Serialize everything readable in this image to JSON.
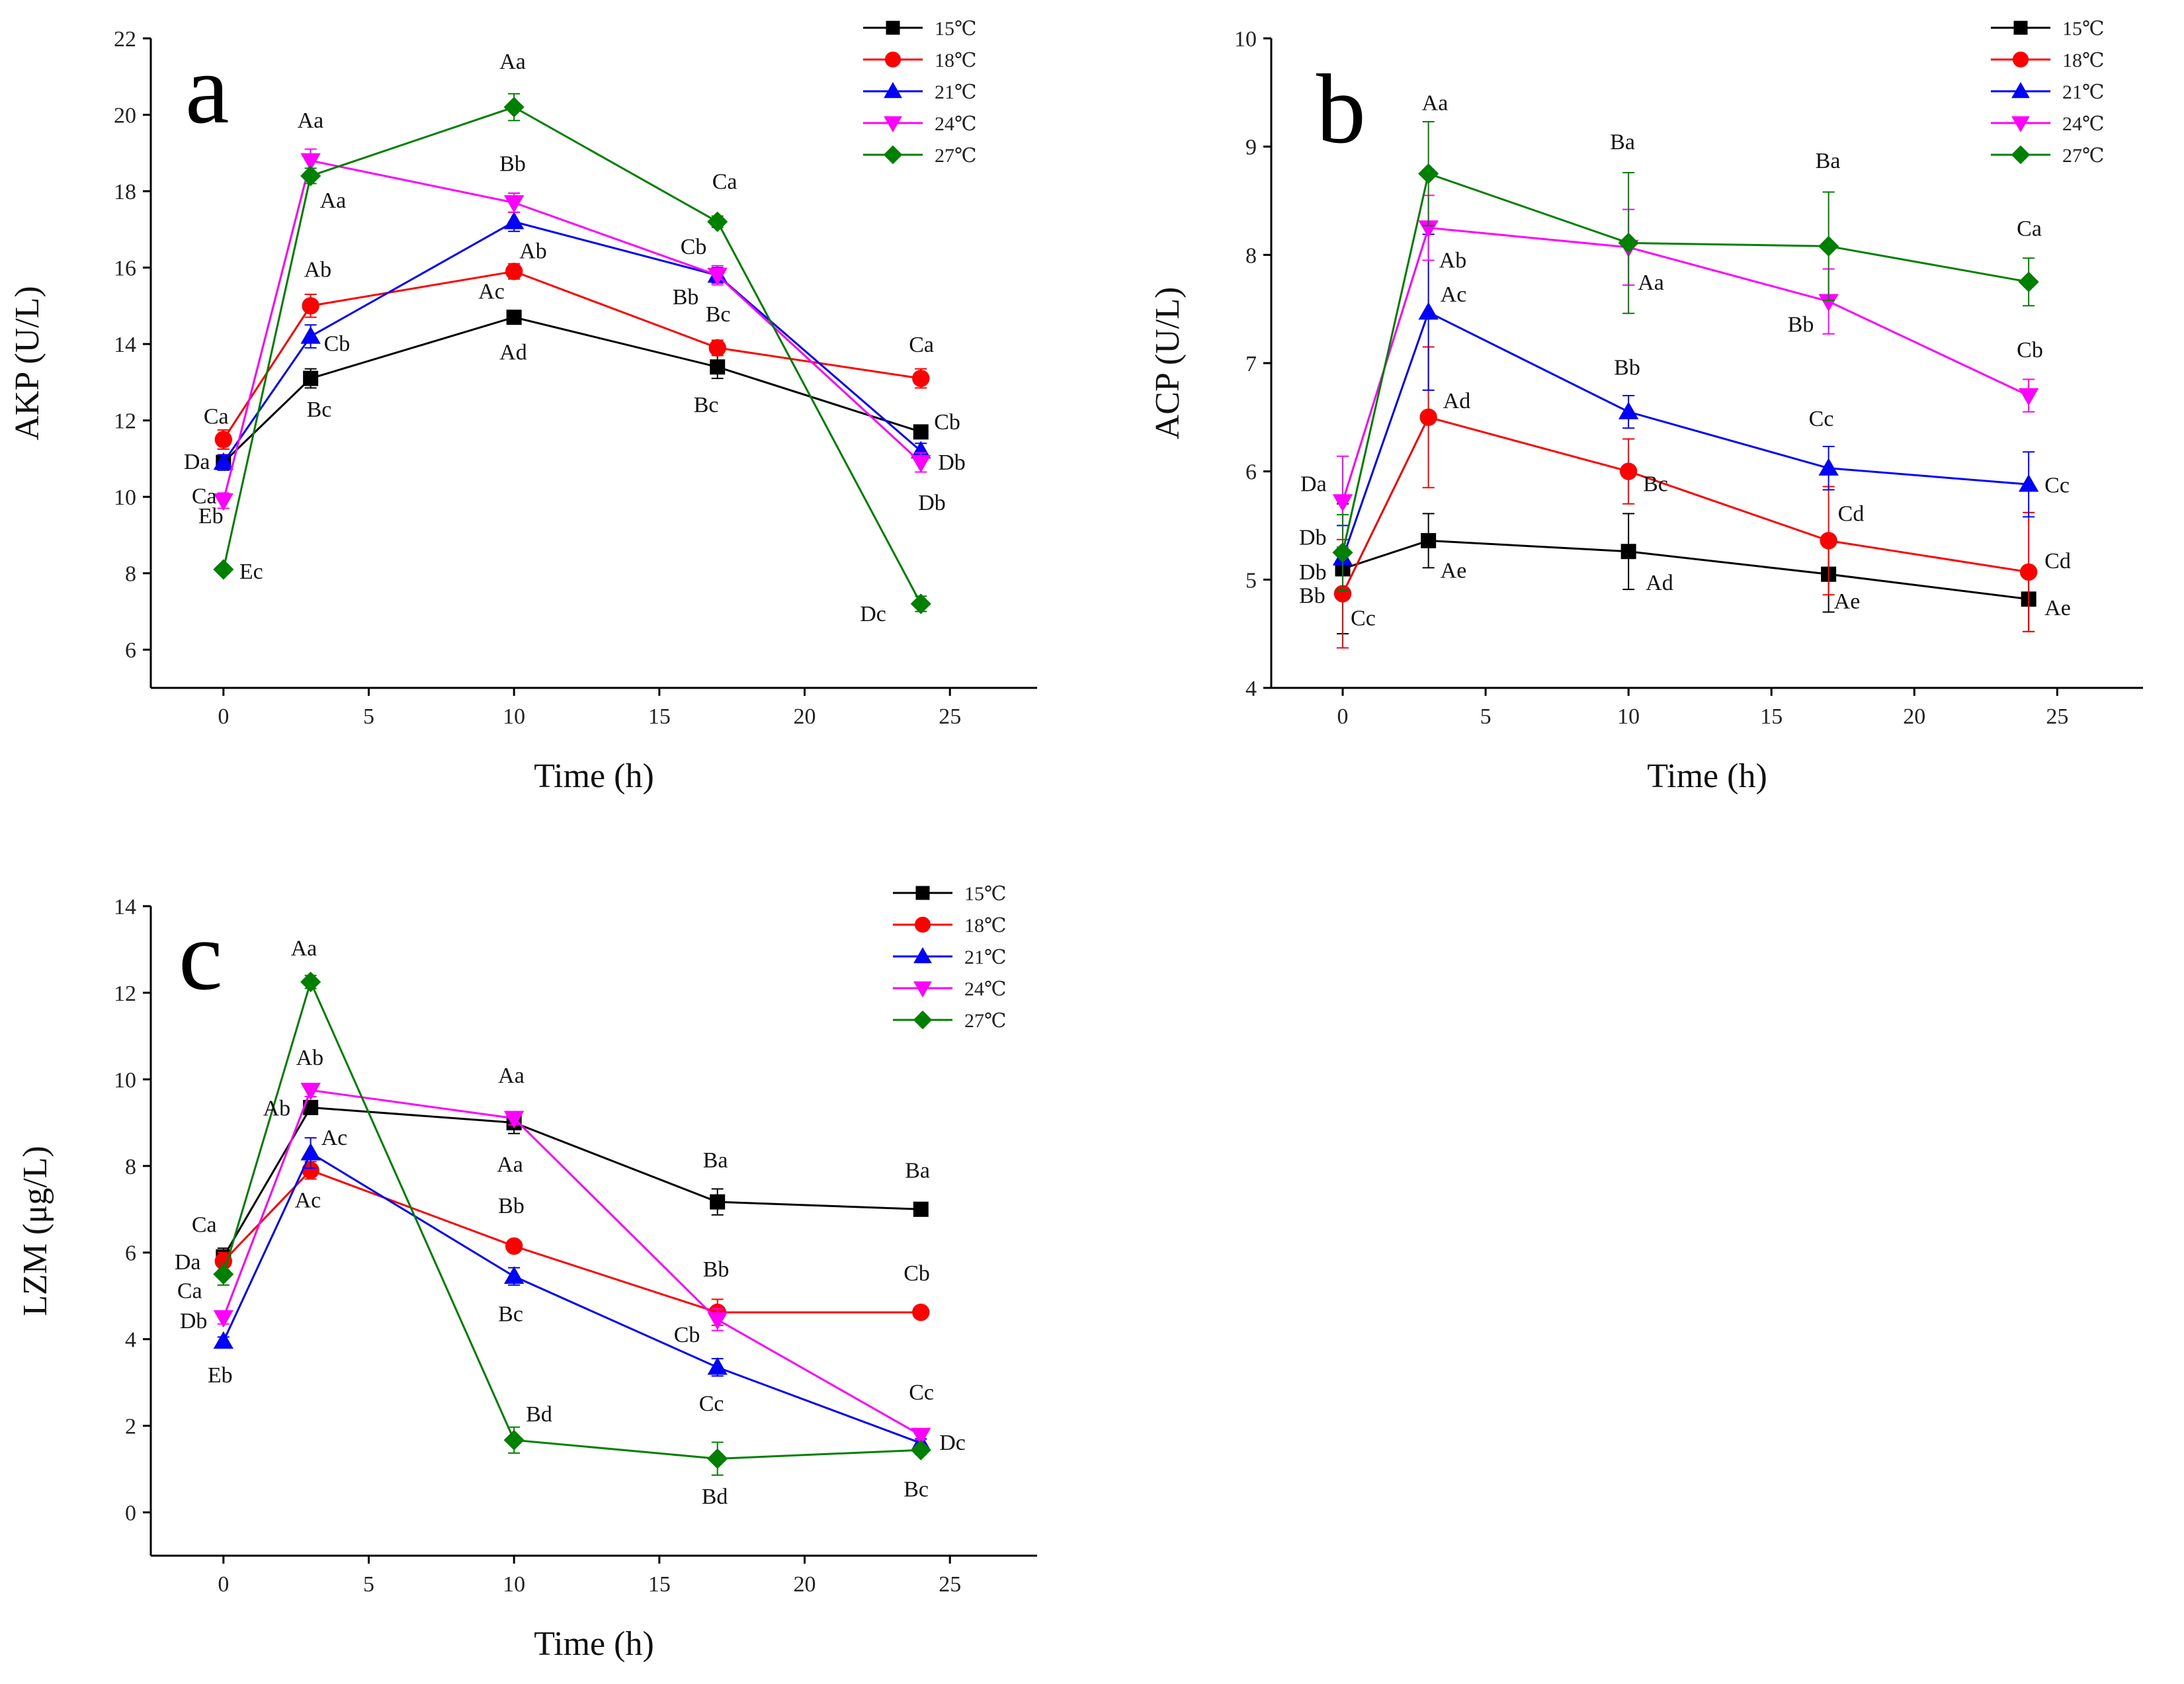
{
  "series_styles": [
    {
      "name": "15℃",
      "color": "#000000",
      "marker": "square"
    },
    {
      "name": "18℃",
      "color": "#ff0000",
      "marker": "circle"
    },
    {
      "name": "21℃",
      "color": "#0000ff",
      "marker": "triangle-up"
    },
    {
      "name": "24℃",
      "color": "#ff00ff",
      "marker": "triangle-down"
    },
    {
      "name": "27℃",
      "color": "#008000",
      "marker": "diamond"
    }
  ],
  "chart_data": [
    {
      "panel": "a",
      "type": "line",
      "xlabel": "Time (h)",
      "ylabel": "AKP (U/L)",
      "xlim": [
        -2.5,
        28
      ],
      "ylim": [
        5,
        22
      ],
      "xticks": [
        0,
        5,
        10,
        15,
        20,
        25
      ],
      "yticks": [
        6,
        8,
        10,
        12,
        14,
        16,
        18,
        20,
        22
      ],
      "x": [
        0,
        3,
        10,
        17,
        24
      ],
      "legend_position": "top-right",
      "series": [
        {
          "name": "15℃",
          "values": [
            10.9,
            13.1,
            14.7,
            13.4,
            11.7
          ],
          "errors": [
            0.2,
            0.25,
            0.15,
            0.3,
            0.15
          ]
        },
        {
          "name": "18℃",
          "values": [
            11.5,
            15.0,
            15.9,
            13.9,
            13.1
          ],
          "errors": [
            0.25,
            0.3,
            0.2,
            0.2,
            0.25
          ]
        },
        {
          "name": "21℃",
          "values": [
            10.9,
            14.2,
            17.2,
            15.8,
            11.2
          ],
          "errors": [
            0.2,
            0.3,
            0.25,
            0.2,
            0.2
          ]
        },
        {
          "name": "24℃",
          "values": [
            9.9,
            18.8,
            17.7,
            15.8,
            10.9
          ],
          "errors": [
            0.2,
            0.3,
            0.25,
            0.25,
            0.25
          ]
        },
        {
          "name": "27℃",
          "values": [
            8.1,
            18.4,
            20.2,
            17.2,
            7.2
          ],
          "errors": [
            0.1,
            0.2,
            0.35,
            0.15,
            0.2
          ]
        }
      ],
      "annotations": [
        {
          "text": "Ca",
          "x": 0,
          "y": 11.5,
          "dx": -30,
          "dy": -24
        },
        {
          "text": "Da",
          "x": 0,
          "y": 10.9,
          "dx": -60,
          "dy": 10
        },
        {
          "text": "Ca",
          "x": 0,
          "y": 10.9,
          "dx": -48,
          "dy": 62
        },
        {
          "text": "Eb",
          "x": 0,
          "y": 9.9,
          "dx": -38,
          "dy": 34
        },
        {
          "text": "Ec",
          "x": 0,
          "y": 8.1,
          "dx": 24,
          "dy": 14
        },
        {
          "text": "Aa",
          "x": 3,
          "y": 18.8,
          "dx": -20,
          "dy": -50
        },
        {
          "text": "Aa",
          "x": 3,
          "y": 18.4,
          "dx": 14,
          "dy": 48
        },
        {
          "text": "Ab",
          "x": 3,
          "y": 15.0,
          "dx": -10,
          "dy": -44
        },
        {
          "text": "Cb",
          "x": 3,
          "y": 14.2,
          "dx": 20,
          "dy": 22
        },
        {
          "text": "Bc",
          "x": 3,
          "y": 13.1,
          "dx": -6,
          "dy": 58
        },
        {
          "text": "Aa",
          "x": 10,
          "y": 20.2,
          "dx": -22,
          "dy": -58
        },
        {
          "text": "Bb",
          "x": 10,
          "y": 17.7,
          "dx": -22,
          "dy": -48
        },
        {
          "text": "Ab",
          "x": 10,
          "y": 15.9,
          "dx": 8,
          "dy": -20
        },
        {
          "text": "Ac",
          "x": 10,
          "y": 14.7,
          "dx": -54,
          "dy": -28
        },
        {
          "text": "Ad",
          "x": 10,
          "y": 14.7,
          "dx": -22,
          "dy": 64
        },
        {
          "text": "Ca",
          "x": 17,
          "y": 17.2,
          "dx": -8,
          "dy": -50
        },
        {
          "text": "Cb",
          "x": 17,
          "y": 15.8,
          "dx": -56,
          "dy": -32
        },
        {
          "text": "Bb",
          "x": 17,
          "y": 15.8,
          "dx": -68,
          "dy": 44
        },
        {
          "text": "Bc",
          "x": 17,
          "y": 13.9,
          "dx": -18,
          "dy": -40
        },
        {
          "text": "Bc",
          "x": 17,
          "y": 13.4,
          "dx": -36,
          "dy": 68
        },
        {
          "text": "Ca",
          "x": 24,
          "y": 13.1,
          "dx": -18,
          "dy": -40
        },
        {
          "text": "Cb",
          "x": 24,
          "y": 11.7,
          "dx": 20,
          "dy": -4
        },
        {
          "text": "Db",
          "x": 24,
          "y": 11.2,
          "dx": 26,
          "dy": 28
        },
        {
          "text": "Db",
          "x": 24,
          "y": 10.9,
          "dx": -4,
          "dy": 72
        },
        {
          "text": "Dc",
          "x": 24,
          "y": 7.2,
          "dx": -92,
          "dy": 26
        }
      ]
    },
    {
      "panel": "b",
      "type": "line",
      "xlabel": "Time (h)",
      "ylabel": "ACP (U/L)",
      "xlim": [
        -2.5,
        28
      ],
      "ylim": [
        4,
        10
      ],
      "xticks": [
        0,
        5,
        10,
        15,
        20,
        25
      ],
      "yticks": [
        4,
        5,
        6,
        7,
        8,
        9,
        10
      ],
      "x": [
        0,
        3,
        10,
        17,
        24
      ],
      "legend_position": "top-right",
      "series": [
        {
          "name": "15℃",
          "values": [
            5.1,
            5.36,
            5.26,
            5.05,
            4.82
          ],
          "errors": [
            0.6,
            0.25,
            0.35,
            0.35,
            0.3
          ]
        },
        {
          "name": "18℃",
          "values": [
            4.87,
            6.5,
            6.0,
            5.36,
            5.07
          ],
          "errors": [
            0.5,
            0.65,
            0.3,
            0.5,
            0.55
          ]
        },
        {
          "name": "21℃",
          "values": [
            5.2,
            7.47,
            6.55,
            6.03,
            5.88
          ],
          "errors": [
            0.3,
            0.72,
            0.15,
            0.2,
            0.3
          ]
        },
        {
          "name": "24℃",
          "values": [
            5.72,
            8.25,
            8.07,
            7.57,
            6.7
          ],
          "errors": [
            0.42,
            0.3,
            0.35,
            0.3,
            0.15
          ]
        },
        {
          "name": "27℃",
          "values": [
            5.25,
            8.75,
            8.11,
            8.08,
            7.75
          ],
          "errors": [
            0.35,
            0.48,
            0.65,
            0.5,
            0.22
          ]
        }
      ],
      "annotations": [
        {
          "text": "Da",
          "x": 0,
          "y": 5.72,
          "dx": -64,
          "dy": -16
        },
        {
          "text": "Db",
          "x": 0,
          "y": 5.25,
          "dx": -66,
          "dy": -12
        },
        {
          "text": "Db",
          "x": 0,
          "y": 5.1,
          "dx": -66,
          "dy": 16
        },
        {
          "text": "Bb",
          "x": 0,
          "y": 4.87,
          "dx": -66,
          "dy": 14
        },
        {
          "text": "Cc",
          "x": 0,
          "y": 4.87,
          "dx": 12,
          "dy": 48
        },
        {
          "text": "Aa",
          "x": 3,
          "y": 8.75,
          "dx": -10,
          "dy": -96
        },
        {
          "text": "Ab",
          "x": 3,
          "y": 8.25,
          "dx": 16,
          "dy": 60
        },
        {
          "text": "Ac",
          "x": 3,
          "y": 7.47,
          "dx": 18,
          "dy": -16
        },
        {
          "text": "Ad",
          "x": 3,
          "y": 6.5,
          "dx": 22,
          "dy": -14
        },
        {
          "text": "Ae",
          "x": 3,
          "y": 5.36,
          "dx": 18,
          "dy": 56
        },
        {
          "text": "Ba",
          "x": 10,
          "y": 8.11,
          "dx": -28,
          "dy": -142
        },
        {
          "text": "Aa",
          "x": 10,
          "y": 8.07,
          "dx": 14,
          "dy": 64
        },
        {
          "text": "Bb",
          "x": 10,
          "y": 6.55,
          "dx": -22,
          "dy": -56
        },
        {
          "text": "Bc",
          "x": 10,
          "y": 6.0,
          "dx": 22,
          "dy": 30
        },
        {
          "text": "Ad",
          "x": 10,
          "y": 5.26,
          "dx": 26,
          "dy": 58
        },
        {
          "text": "Ba",
          "x": 17,
          "y": 8.08,
          "dx": -20,
          "dy": -118
        },
        {
          "text": "Bb",
          "x": 17,
          "y": 7.57,
          "dx": -62,
          "dy": 46
        },
        {
          "text": "Cc",
          "x": 17,
          "y": 6.03,
          "dx": -30,
          "dy": -64
        },
        {
          "text": "Cd",
          "x": 17,
          "y": 5.36,
          "dx": 14,
          "dy": -30
        },
        {
          "text": "Ae",
          "x": 17,
          "y": 5.05,
          "dx": 8,
          "dy": 52
        },
        {
          "text": "Ca",
          "x": 24,
          "y": 7.75,
          "dx": -18,
          "dy": -70
        },
        {
          "text": "Cb",
          "x": 24,
          "y": 6.7,
          "dx": -18,
          "dy": -58
        },
        {
          "text": "Cc",
          "x": 24,
          "y": 5.88,
          "dx": 24,
          "dy": 12
        },
        {
          "text": "Cd",
          "x": 24,
          "y": 5.07,
          "dx": 24,
          "dy": -6
        },
        {
          "text": "Ae",
          "x": 24,
          "y": 4.82,
          "dx": 24,
          "dy": 24
        }
      ]
    },
    {
      "panel": "c",
      "type": "line",
      "xlabel": "Time (h)",
      "ylabel": "LZM (μg/L)",
      "xlim": [
        -2.5,
        28
      ],
      "ylim": [
        -1,
        14
      ],
      "xticks": [
        0,
        5,
        10,
        15,
        20,
        25
      ],
      "yticks": [
        0,
        2,
        4,
        6,
        8,
        10,
        12,
        14
      ],
      "x": [
        0,
        3,
        10,
        17,
        24
      ],
      "legend_position": "top-right",
      "series": [
        {
          "name": "15℃",
          "values": [
            5.9,
            9.35,
            9.0,
            7.17,
            7.0
          ],
          "errors": [
            0.2,
            0.15,
            0.25,
            0.3,
            0.1
          ]
        },
        {
          "name": "18℃",
          "values": [
            5.8,
            7.9,
            6.15,
            4.62,
            4.62
          ],
          "errors": [
            0.2,
            0.2,
            0.1,
            0.3,
            0.05
          ]
        },
        {
          "name": "21℃",
          "values": [
            3.95,
            8.3,
            5.45,
            3.35,
            1.6
          ],
          "errors": [
            0.1,
            0.35,
            0.2,
            0.2,
            0.1
          ]
        },
        {
          "name": "24℃",
          "values": [
            4.5,
            9.75,
            9.1,
            4.45,
            1.78
          ],
          "errors": [
            0.15,
            0.15,
            0.15,
            0.25,
            0.1
          ]
        },
        {
          "name": "27℃",
          "values": [
            5.5,
            12.25,
            1.67,
            1.24,
            1.44
          ],
          "errors": [
            0.25,
            0.15,
            0.3,
            0.38,
            0.1
          ]
        }
      ],
      "annotations": [
        {
          "text": "Ca",
          "x": 0,
          "y": 5.9,
          "dx": -48,
          "dy": -38
        },
        {
          "text": "Da",
          "x": 0,
          "y": 5.8,
          "dx": -74,
          "dy": 12
        },
        {
          "text": "Ca",
          "x": 0,
          "y": 5.5,
          "dx": -70,
          "dy": 36
        },
        {
          "text": "Db",
          "x": 0,
          "y": 4.5,
          "dx": -66,
          "dy": 16
        },
        {
          "text": "Eb",
          "x": 0,
          "y": 3.95,
          "dx": -24,
          "dy": 62
        },
        {
          "text": "Aa",
          "x": 3,
          "y": 12.25,
          "dx": -30,
          "dy": -40
        },
        {
          "text": "Ab",
          "x": 3,
          "y": 9.75,
          "dx": -22,
          "dy": -38
        },
        {
          "text": "Ab",
          "x": 3,
          "y": 9.35,
          "dx": -72,
          "dy": 12
        },
        {
          "text": "Ac",
          "x": 3,
          "y": 8.3,
          "dx": 16,
          "dy": -12
        },
        {
          "text": "Ac",
          "x": 3,
          "y": 7.9,
          "dx": -24,
          "dy": 56
        },
        {
          "text": "Aa",
          "x": 10,
          "y": 9.1,
          "dx": -24,
          "dy": -54
        },
        {
          "text": "Aa",
          "x": 10,
          "y": 9.0,
          "dx": -26,
          "dy": 74
        },
        {
          "text": "Bb",
          "x": 10,
          "y": 6.15,
          "dx": -24,
          "dy": -50
        },
        {
          "text": "Bc",
          "x": 10,
          "y": 5.45,
          "dx": -24,
          "dy": 68
        },
        {
          "text": "Bd",
          "x": 10,
          "y": 1.67,
          "dx": 18,
          "dy": -28
        },
        {
          "text": "Ba",
          "x": 17,
          "y": 7.17,
          "dx": -22,
          "dy": -52
        },
        {
          "text": "Bb",
          "x": 17,
          "y": 4.62,
          "dx": -22,
          "dy": -54
        },
        {
          "text": "Cb",
          "x": 17,
          "y": 4.45,
          "dx": -66,
          "dy": 34
        },
        {
          "text": "Cc",
          "x": 17,
          "y": 3.35,
          "dx": -28,
          "dy": 66
        },
        {
          "text": "Bd",
          "x": 17,
          "y": 1.24,
          "dx": -24,
          "dy": 68
        },
        {
          "text": "Ba",
          "x": 24,
          "y": 7.0,
          "dx": -24,
          "dy": -48
        },
        {
          "text": "Cb",
          "x": 24,
          "y": 4.62,
          "dx": -26,
          "dy": -48
        },
        {
          "text": "Cc",
          "x": 24,
          "y": 1.78,
          "dx": -18,
          "dy": -54
        },
        {
          "text": "Dc",
          "x": 24,
          "y": 1.6,
          "dx": 28,
          "dy": 10
        },
        {
          "text": "Bc",
          "x": 24,
          "y": 1.44,
          "dx": -26,
          "dy": 70
        }
      ]
    }
  ]
}
